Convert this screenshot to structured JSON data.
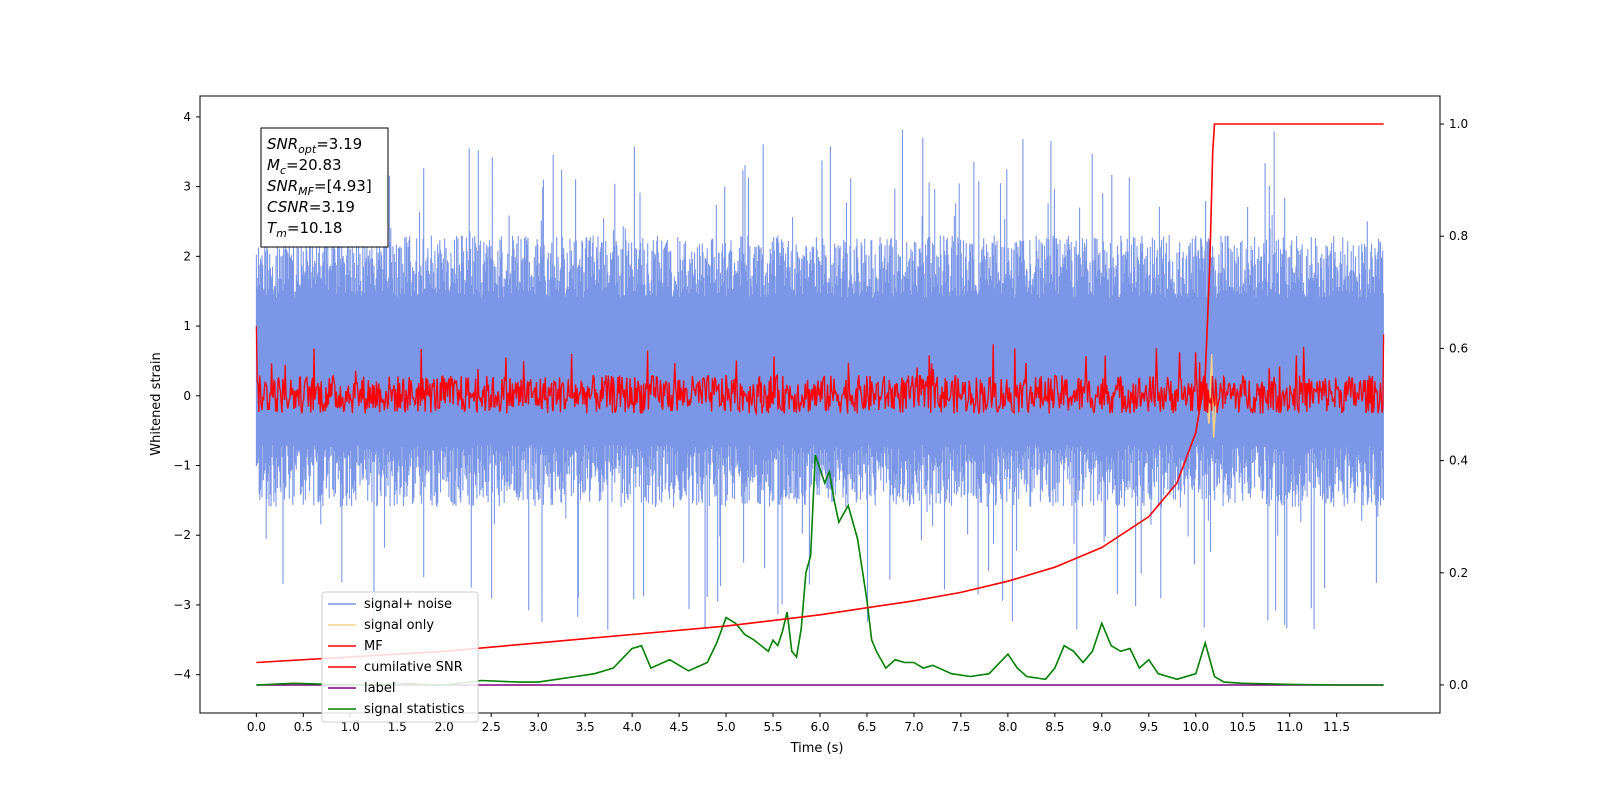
{
  "chart_data": {
    "type": "line",
    "xlabel": "Time (s)",
    "ylabel": "Whitened strain",
    "xlim": [
      -0.6,
      12.6
    ],
    "ylim": [
      -4.55,
      4.3
    ],
    "ylim_right": [
      -0.05,
      1.05
    ],
    "x_ticks": [
      0.0,
      0.5,
      1.0,
      1.5,
      2.0,
      2.5,
      3.0,
      3.5,
      4.0,
      4.5,
      5.0,
      5.5,
      6.0,
      6.5,
      7.0,
      7.5,
      8.0,
      8.5,
      9.0,
      9.5,
      10.0,
      10.5,
      11.0,
      11.5
    ],
    "x_tick_labels": [
      "0.0",
      "0.5",
      "1.0",
      "1.5",
      "2.0",
      "2.5",
      "3.0",
      "3.5",
      "4.0",
      "4.5",
      "5.0",
      "5.5",
      "6.0",
      "6.5",
      "7.0",
      "7.5",
      "8.0",
      "8.5",
      "9.0",
      "9.5",
      "10.0",
      "10.5",
      "11.0",
      "11.5"
    ],
    "y_ticks": [
      4,
      3,
      2,
      1,
      0,
      -1,
      -2,
      -3,
      -4
    ],
    "y_tick_labels": [
      "4",
      "3",
      "2",
      "1",
      "0",
      "−1",
      "−2",
      "−3",
      "−4"
    ],
    "y_right_ticks": [
      1.0,
      0.8,
      0.6,
      0.4,
      0.2,
      0.0
    ],
    "y_right_tick_labels": [
      "1.0",
      "0.8",
      "0.6",
      "0.4",
      "0.2",
      "0.0"
    ],
    "grid": false,
    "legend_placement": "lower-left",
    "legend": [
      {
        "label": "signal+ noise",
        "color": "#7b96e6"
      },
      {
        "label": "signal only",
        "color": "#f4d18a"
      },
      {
        "label": "MF",
        "color": "#ff0000"
      },
      {
        "label": "cumilative SNR",
        "color": "#ff0000"
      },
      {
        "label": "label",
        "color": "#800080"
      },
      {
        "label": "signal statistics",
        "color": "#008000"
      }
    ],
    "annotation": [
      {
        "sym": "SNR",
        "sub": "opt",
        "val": "=3.19"
      },
      {
        "sym": "M",
        "sub": "c",
        "val": "=20.83"
      },
      {
        "sym": "SNR",
        "sub": "MF",
        "val": "=[4.93]"
      },
      {
        "sym": "CSNR",
        "sub": "",
        "val": "=3.19"
      },
      {
        "sym": "T",
        "sub": "m",
        "val": "=10.18"
      }
    ],
    "series": [
      {
        "name": "signal+ noise",
        "axis": "left",
        "style": "noise band",
        "x_range": [
          0.0,
          12.0
        ],
        "typical_range": [
          -1.6,
          2.3
        ],
        "peaks": [
          3.85,
          3.9,
          3.7,
          3.5,
          3.4
        ],
        "troughs": [
          -3.3,
          -3.4,
          -4.1,
          -3.6
        ]
      },
      {
        "name": "signal only",
        "axis": "left",
        "x": [
          10.05,
          10.1,
          10.14,
          10.17,
          10.19,
          10.22
        ],
        "y": [
          0.0,
          0.2,
          -0.4,
          0.6,
          -0.6,
          0.0
        ]
      },
      {
        "name": "MF",
        "axis": "left",
        "style": "noise band",
        "x_range": [
          0.0,
          12.0
        ],
        "typical_range": [
          -0.3,
          0.3
        ],
        "peaks": [
          0.75,
          0.7,
          0.65,
          0.6
        ],
        "start_y": 1.0,
        "end_y": 0.88
      },
      {
        "name": "cumilative SNR",
        "axis": "right",
        "x": [
          0.0,
          1.0,
          2.0,
          3.0,
          4.0,
          5.0,
          6.0,
          7.0,
          7.5,
          8.0,
          8.5,
          9.0,
          9.5,
          9.8,
          10.0,
          10.1,
          10.15,
          10.18,
          10.2,
          12.0
        ],
        "y": [
          0.04,
          0.05,
          0.06,
          0.075,
          0.09,
          0.105,
          0.125,
          0.15,
          0.165,
          0.185,
          0.21,
          0.245,
          0.3,
          0.36,
          0.45,
          0.55,
          0.75,
          0.95,
          1.0,
          1.0
        ]
      },
      {
        "name": "label",
        "axis": "right",
        "x": [
          0.0,
          12.0
        ],
        "y": [
          0.0,
          0.0
        ]
      },
      {
        "name": "signal statistics",
        "axis": "right",
        "x": [
          0.0,
          0.4,
          0.8,
          1.2,
          1.6,
          2.0,
          2.4,
          2.8,
          3.0,
          3.2,
          3.4,
          3.6,
          3.8,
          4.0,
          4.1,
          4.2,
          4.4,
          4.6,
          4.8,
          4.9,
          5.0,
          5.1,
          5.2,
          5.3,
          5.45,
          5.5,
          5.55,
          5.6,
          5.65,
          5.7,
          5.75,
          5.8,
          5.85,
          5.9,
          5.95,
          6.05,
          6.1,
          6.15,
          6.2,
          6.3,
          6.4,
          6.5,
          6.55,
          6.6,
          6.7,
          6.8,
          6.9,
          7.0,
          7.1,
          7.2,
          7.4,
          7.6,
          7.8,
          8.0,
          8.1,
          8.2,
          8.4,
          8.5,
          8.6,
          8.7,
          8.8,
          8.9,
          9.0,
          9.1,
          9.2,
          9.3,
          9.4,
          9.5,
          9.6,
          9.8,
          10.0,
          10.1,
          10.2,
          10.3,
          10.5,
          11.0,
          11.5,
          12.0
        ],
        "y": [
          0.0,
          0.003,
          0.001,
          0.0,
          0.002,
          0.0,
          0.008,
          0.005,
          0.005,
          0.01,
          0.015,
          0.02,
          0.03,
          0.065,
          0.07,
          0.03,
          0.045,
          0.025,
          0.04,
          0.075,
          0.12,
          0.11,
          0.09,
          0.08,
          0.06,
          0.08,
          0.07,
          0.095,
          0.13,
          0.06,
          0.05,
          0.1,
          0.2,
          0.23,
          0.41,
          0.36,
          0.38,
          0.33,
          0.29,
          0.32,
          0.26,
          0.15,
          0.08,
          0.06,
          0.03,
          0.045,
          0.04,
          0.04,
          0.03,
          0.035,
          0.02,
          0.015,
          0.02,
          0.055,
          0.03,
          0.015,
          0.01,
          0.03,
          0.07,
          0.06,
          0.04,
          0.06,
          0.11,
          0.07,
          0.06,
          0.065,
          0.03,
          0.045,
          0.02,
          0.01,
          0.02,
          0.075,
          0.015,
          0.005,
          0.003,
          0.001,
          0.0,
          0.0
        ]
      }
    ]
  }
}
